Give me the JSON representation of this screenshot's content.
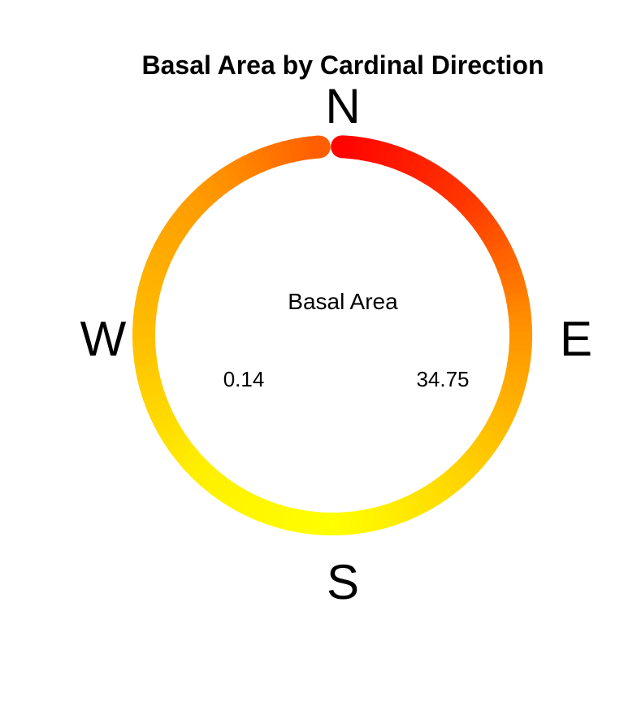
{
  "chart_data": {
    "type": "radial-gradient-ring",
    "title": "Basal Area by Cardinal Direction",
    "directions": [
      {
        "label": "N",
        "angle_deg": 0
      },
      {
        "label": "E",
        "angle_deg": 90
      },
      {
        "label": "S",
        "angle_deg": 180
      },
      {
        "label": "W",
        "angle_deg": 270
      }
    ],
    "legend": {
      "title": "Basal Area",
      "min_label": "0.14",
      "max_label": "34.75",
      "min": 0.14,
      "max": 34.75
    },
    "color_scale": {
      "low": "#ffff00",
      "mid": "#ff8c00",
      "high": "#ff0000"
    },
    "profile": [
      {
        "angle_deg": 0,
        "value": 34.75
      },
      {
        "angle_deg": 45,
        "value": 28.0
      },
      {
        "angle_deg": 90,
        "value": 16.0
      },
      {
        "angle_deg": 135,
        "value": 7.0
      },
      {
        "angle_deg": 180,
        "value": 0.14
      },
      {
        "angle_deg": 225,
        "value": 2.5
      },
      {
        "angle_deg": 270,
        "value": 10.0
      },
      {
        "angle_deg": 315,
        "value": 15.0
      },
      {
        "angle_deg": 355,
        "value": 23.0
      }
    ]
  }
}
